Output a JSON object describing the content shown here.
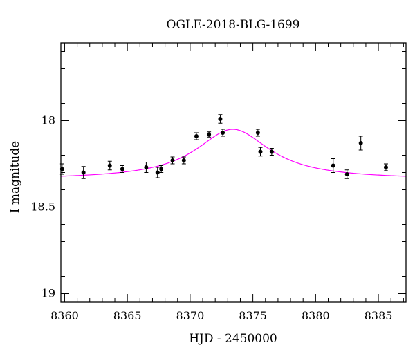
{
  "chart_data": {
    "type": "scatter",
    "title": "OGLE-2018-BLG-1699",
    "xlabel": "HJD - 2450000",
    "ylabel": "I magnitude",
    "xlim": [
      8359.7,
      8387.2
    ],
    "ylim": [
      19.05,
      17.55
    ],
    "y_inverted": true,
    "xticks": [
      8360,
      8365,
      8370,
      8375,
      8380,
      8385
    ],
    "xtick_labels": [
      "8360",
      "8365",
      "8370",
      "8375",
      "8380",
      "8385"
    ],
    "yticks": [
      18,
      18.5,
      19
    ],
    "ytick_labels": [
      "18",
      "18.5",
      "19"
    ],
    "grid": false,
    "colors": {
      "points": "#000000",
      "model": "#ff00ff"
    },
    "series": [
      {
        "type": "scatter",
        "with_error_bars": true,
        "points": [
          {
            "x": 8359.8,
            "y": 18.28,
            "err": 0.03
          },
          {
            "x": 8361.5,
            "y": 18.3,
            "err": 0.035
          },
          {
            "x": 8363.6,
            "y": 18.26,
            "err": 0.025
          },
          {
            "x": 8364.6,
            "y": 18.28,
            "err": 0.02
          },
          {
            "x": 8366.5,
            "y": 18.27,
            "err": 0.03
          },
          {
            "x": 8367.4,
            "y": 18.3,
            "err": 0.03
          },
          {
            "x": 8367.7,
            "y": 18.28,
            "err": 0.02
          },
          {
            "x": 8368.6,
            "y": 18.23,
            "err": 0.02
          },
          {
            "x": 8369.5,
            "y": 18.23,
            "err": 0.02
          },
          {
            "x": 8370.5,
            "y": 18.09,
            "err": 0.02
          },
          {
            "x": 8371.5,
            "y": 18.08,
            "err": 0.015
          },
          {
            "x": 8372.4,
            "y": 17.99,
            "err": 0.025
          },
          {
            "x": 8372.6,
            "y": 18.07,
            "err": 0.02
          },
          {
            "x": 8375.4,
            "y": 18.07,
            "err": 0.02
          },
          {
            "x": 8375.6,
            "y": 18.18,
            "err": 0.025
          },
          {
            "x": 8376.5,
            "y": 18.18,
            "err": 0.02
          },
          {
            "x": 8381.4,
            "y": 18.26,
            "err": 0.04
          },
          {
            "x": 8382.5,
            "y": 18.31,
            "err": 0.025
          },
          {
            "x": 8383.6,
            "y": 18.13,
            "err": 0.04
          },
          {
            "x": 8385.6,
            "y": 18.27,
            "err": 0.02
          }
        ]
      },
      {
        "type": "line",
        "model": {
          "t0": 8373.4,
          "baseline": 18.34,
          "peak": 18.05,
          "width": 3.6
        }
      }
    ]
  }
}
